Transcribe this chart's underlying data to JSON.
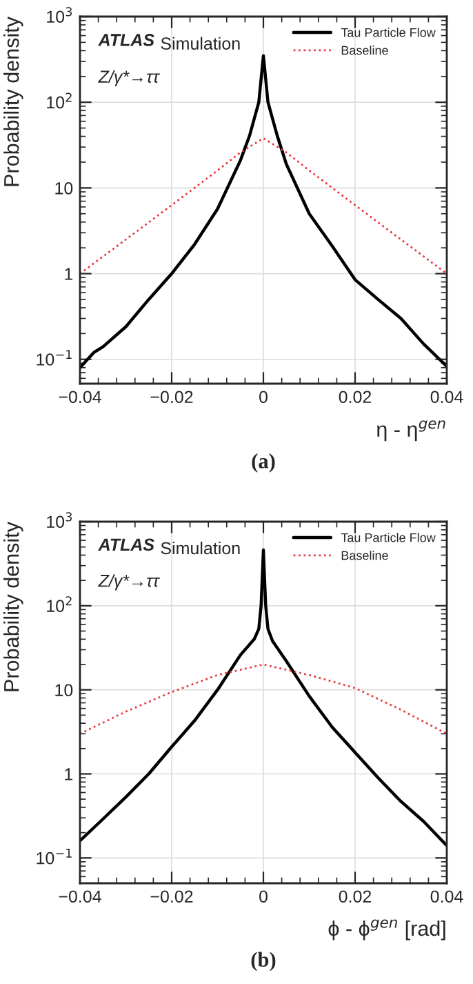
{
  "chart_data": [
    {
      "type": "line",
      "xlabel": "η - η$^{gen}$",
      "ylabel": "Probability density",
      "log": "y",
      "grid": true,
      "legend": "top right",
      "annotations": [
        "ATLAS",
        "Simulation",
        "Z/γ*→ττ",
        "(a)"
      ],
      "xlim": [
        -0.04,
        0.04
      ],
      "xticks": [
        -0.04,
        -0.02,
        0,
        0.02,
        0.04
      ],
      "ylim": [
        0.052,
        1000
      ],
      "yticks": [
        {
          "value": 0.1,
          "label": "10$^{−1}$"
        },
        1,
        10,
        {
          "value": 100,
          "label": "10$^{2}$"
        },
        {
          "value": 1000,
          "label": "10$^{3}$"
        }
      ],
      "series": [
        {
          "name": "Tau Particle Flow",
          "color": "#000000",
          "line_style": "solid",
          "x": [
            -0.04,
            -0.037,
            -0.035,
            -0.03,
            -0.025,
            -0.02,
            -0.015,
            -0.01,
            -0.005,
            -0.003,
            -0.001,
            0,
            0.001,
            0.003,
            0.005,
            0.01,
            0.015,
            0.02,
            0.025,
            0.03,
            0.035,
            0.04
          ],
          "values": [
            0.08,
            0.12,
            0.14,
            0.24,
            0.5,
            1.0,
            2.2,
            5.7,
            21,
            41,
            100,
            350,
            100,
            41,
            19,
            5,
            2.1,
            0.85,
            0.5,
            0.3,
            0.15,
            0.083
          ]
        },
        {
          "name": "Baseline",
          "color": "#e8383d",
          "line_style": "dotted",
          "x": [
            -0.04,
            -0.03,
            -0.02,
            -0.01,
            -0.005,
            0,
            0.005,
            0.01,
            0.02,
            0.03,
            0.04
          ],
          "values": [
            1,
            2.5,
            6.3,
            16,
            26,
            38,
            26,
            16,
            6.3,
            2.5,
            1
          ]
        }
      ]
    },
    {
      "type": "line",
      "xlabel": "ϕ - ϕ$^{gen}$ [rad]",
      "ylabel": "Probability density",
      "log": "y",
      "grid": true,
      "legend": "top right",
      "annotations": [
        "ATLAS",
        "Simulation",
        "Z/γ*→ττ",
        "(b)"
      ],
      "xlim": [
        -0.04,
        0.04
      ],
      "xticks": [
        -0.04,
        -0.02,
        0,
        0.02,
        0.04
      ],
      "ylim": [
        0.05,
        1000
      ],
      "yticks": [
        {
          "value": 0.1,
          "label": "10$^{−1}$"
        },
        1,
        10,
        {
          "value": 100,
          "label": "10$^{2}$"
        },
        {
          "value": 1000,
          "label": "10$^{3}$"
        }
      ],
      "series": [
        {
          "name": "Tau Particle Flow",
          "color": "#000000",
          "line_style": "solid",
          "x": [
            -0.04,
            -0.035,
            -0.03,
            -0.025,
            -0.02,
            -0.015,
            -0.01,
            -0.005,
            -0.002,
            -0.001,
            -0.0005,
            0,
            0.0005,
            0.001,
            0.002,
            0.005,
            0.01,
            0.015,
            0.02,
            0.025,
            0.03,
            0.035,
            0.04
          ],
          "values": [
            0.16,
            0.29,
            0.53,
            1.0,
            2.1,
            4.3,
            10,
            26,
            40,
            53,
            100,
            460,
            100,
            53,
            38,
            22,
            8.4,
            3.6,
            1.8,
            0.9,
            0.47,
            0.27,
            0.14
          ]
        },
        {
          "name": "Baseline",
          "color": "#e8383d",
          "line_style": "dotted",
          "x": [
            -0.04,
            -0.03,
            -0.02,
            -0.01,
            0,
            0.01,
            0.02,
            0.03,
            0.04
          ],
          "values": [
            3,
            5.5,
            9.4,
            15,
            20,
            15,
            10.5,
            5.8,
            3
          ]
        }
      ]
    }
  ]
}
